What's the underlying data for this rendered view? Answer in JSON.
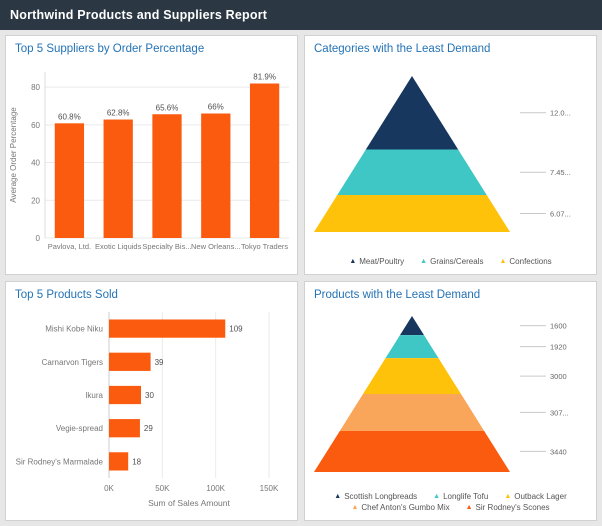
{
  "header": {
    "title": "Northwind Products and Suppliers Report"
  },
  "colors": {
    "header_bg": "#2B3844",
    "title_blue": "#2473B5",
    "bar_orange": "#FA5B0F",
    "navy": "#17375E",
    "teal": "#3FC7C5",
    "yellow": "#FFC20A",
    "light_orange": "#F9A65A",
    "axis_text": "#777777",
    "grid_line": "#EAEAEA"
  },
  "chart_data": [
    {
      "id": "suppliers",
      "type": "bar",
      "title": "Top 5 Suppliers by Order Percentage",
      "categories": [
        "Pavlova, Ltd.",
        "Exotic Liquids",
        "Specialty Bis...",
        "New Orleans...",
        "Tokyo Traders"
      ],
      "values": [
        60.8,
        62.8,
        65.6,
        66,
        81.9
      ],
      "data_labels": [
        "60.8%",
        "62.8%",
        "65.6%",
        "66%",
        "81.9%"
      ],
      "xlabel": "",
      "ylabel": "Average Order Percentage",
      "ylim": [
        0,
        88
      ],
      "yticks": [
        0,
        20,
        40,
        60,
        80
      ],
      "bar_color": "#FA5B0F",
      "grid": true,
      "legend_position": "none"
    },
    {
      "id": "categories-pyramid",
      "type": "pyramid",
      "title": "Categories with the Least Demand",
      "series": [
        {
          "name": "Meat/Poultry",
          "value": 12.03,
          "label": "12.0...",
          "color": "#17375E"
        },
        {
          "name": "Grains/Cereals",
          "value": 7.45,
          "label": "7.45...",
          "color": "#3FC7C5"
        },
        {
          "name": "Confections",
          "value": 6.07,
          "label": "6.07...",
          "color": "#FFC20A"
        }
      ],
      "legend_position": "bottom"
    },
    {
      "id": "products-sold",
      "type": "hbar",
      "title": "Top 5 Products Sold",
      "categories": [
        "Mishi Kobe Niku",
        "Carnarvon Tigers",
        "Ikura",
        "Vegie-spread",
        "Sir Rodney's Marmalade"
      ],
      "values": [
        109,
        39,
        30,
        29,
        18
      ],
      "data_labels": [
        "109",
        "39",
        "30",
        "29",
        "18"
      ],
      "xlabel": "Sum of Sales Amount",
      "ylabel": "",
      "xlim": [
        0,
        150
      ],
      "xticks": [
        0,
        50,
        100,
        150
      ],
      "xtick_labels": [
        "0K",
        "50K",
        "100K",
        "150K"
      ],
      "bar_color": "#FA5B0F",
      "grid": true,
      "legend_position": "none"
    },
    {
      "id": "products-pyramid",
      "type": "pyramid",
      "title": "Products with the Least Demand",
      "series": [
        {
          "name": "Scottish Longbreads",
          "value": 1600,
          "label": "1600",
          "color": "#17375E"
        },
        {
          "name": "Longlife Tofu",
          "value": 1920,
          "label": "1920",
          "color": "#3FC7C5"
        },
        {
          "name": "Outback Lager",
          "value": 3000,
          "label": "3000",
          "color": "#FFC20A"
        },
        {
          "name": "Chef Anton's Gumbo Mix",
          "value": 3070,
          "label": "307...",
          "color": "#F9A65A"
        },
        {
          "name": "Sir Rodney's Scones",
          "value": 3440,
          "label": "3440",
          "color": "#FA5B0F"
        }
      ],
      "legend_position": "bottom"
    }
  ]
}
